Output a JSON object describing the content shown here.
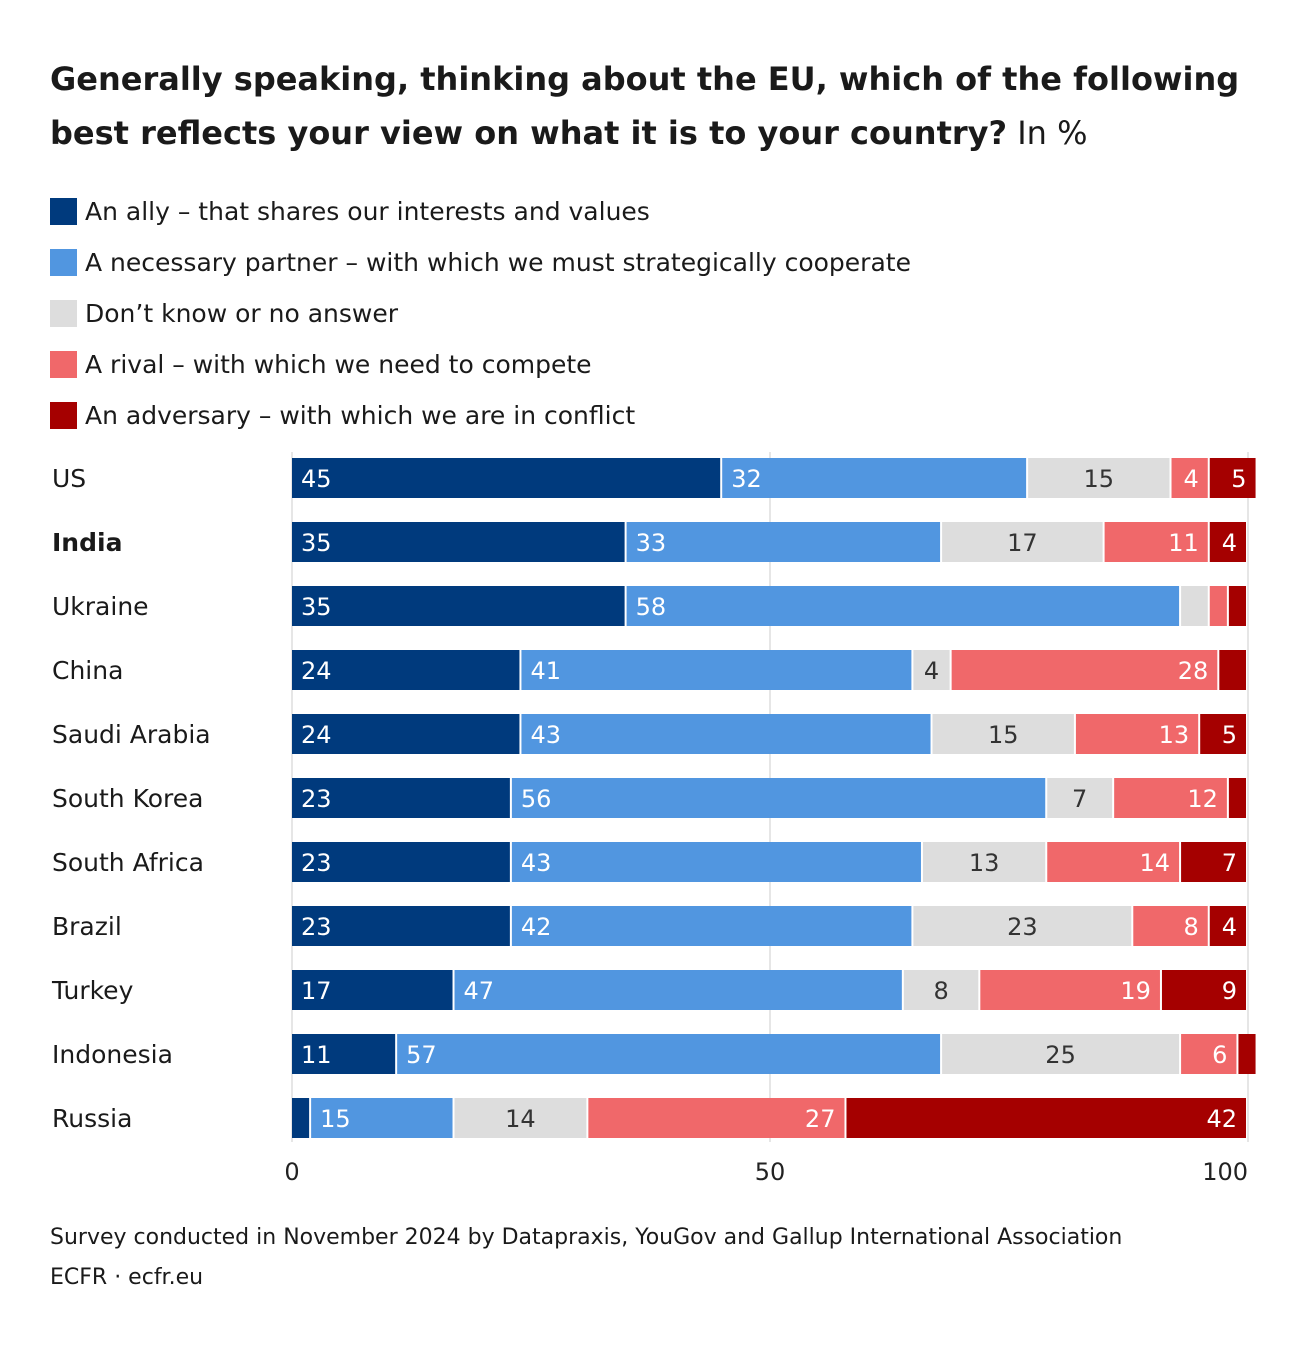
{
  "title": {
    "main": "Generally speaking, thinking about the EU, which of the following best reflects your view on what it is to your country?",
    "unit": "In %"
  },
  "legend": [
    {
      "label": "An ally – that shares our interests and values",
      "color": "#003a7d"
    },
    {
      "label": "A necessary partner – with which we must strategically cooperate",
      "color": "#5196e0"
    },
    {
      "label": "Don’t know or no answer",
      "color": "#dddddd"
    },
    {
      "label": "A rival – with which we need to compete",
      "color": "#f0686a"
    },
    {
      "label": "An adversary – with which we are in conflict",
      "color": "#a50000"
    }
  ],
  "chart_data": {
    "type": "bar",
    "orientation": "horizontal",
    "stacked": true,
    "categories": [
      "US",
      "India",
      "Ukraine",
      "China",
      "Saudi Arabia",
      "South Korea",
      "South Africa",
      "Brazil",
      "Turkey",
      "Indonesia",
      "Russia"
    ],
    "highlighted_category": "India",
    "series": [
      {
        "name": "An ally – that shares our interests and values",
        "color": "#003a7d",
        "label_color": "#ffffff",
        "values": [
          45,
          35,
          35,
          24,
          24,
          23,
          23,
          23,
          17,
          11,
          2
        ],
        "labels": [
          "45",
          "35",
          "35",
          "24",
          "24",
          "23",
          "23",
          "23",
          "17",
          "11",
          ""
        ]
      },
      {
        "name": "A necessary partner – with which we must strategically cooperate",
        "color": "#5196e0",
        "label_color": "#ffffff",
        "values": [
          32,
          33,
          58,
          41,
          43,
          56,
          43,
          42,
          47,
          57,
          15
        ],
        "labels": [
          "32",
          "33",
          "58",
          "41",
          "43",
          "56",
          "43",
          "42",
          "47",
          "57",
          "15"
        ]
      },
      {
        "name": "Don’t know or no answer",
        "color": "#dddddd",
        "label_color": "#333333",
        "values": [
          15,
          17,
          3,
          4,
          15,
          7,
          13,
          23,
          8,
          25,
          14
        ],
        "labels": [
          "15",
          "17",
          "",
          "4",
          "15",
          "7",
          "13",
          "23",
          "8",
          "25",
          "14"
        ]
      },
      {
        "name": "A rival – with which we need to compete",
        "color": "#f0686a",
        "label_color": "#ffffff",
        "values": [
          4,
          11,
          2,
          28,
          13,
          12,
          14,
          8,
          19,
          6,
          27
        ],
        "labels": [
          "4",
          "11",
          "",
          "28",
          "13",
          "12",
          "14",
          "8",
          "19",
          "6",
          "27"
        ]
      },
      {
        "name": "An adversary – with which we are in conflict",
        "color": "#a50000",
        "label_color": "#ffffff",
        "values": [
          5,
          4,
          2,
          3,
          5,
          2,
          7,
          4,
          9,
          2,
          42
        ],
        "labels": [
          "5",
          "4",
          "",
          "",
          "5",
          "",
          "7",
          "4",
          "9",
          "",
          "42"
        ]
      }
    ],
    "xlim": [
      0,
      100
    ],
    "xticks": [
      "0",
      "50",
      "100"
    ],
    "grid": true,
    "legend_position": "top"
  },
  "source": {
    "note": "Survey conducted in November 2024 by Datapraxis, YouGov and Gallup International Association",
    "credit": "ECFR · ecfr.eu"
  }
}
